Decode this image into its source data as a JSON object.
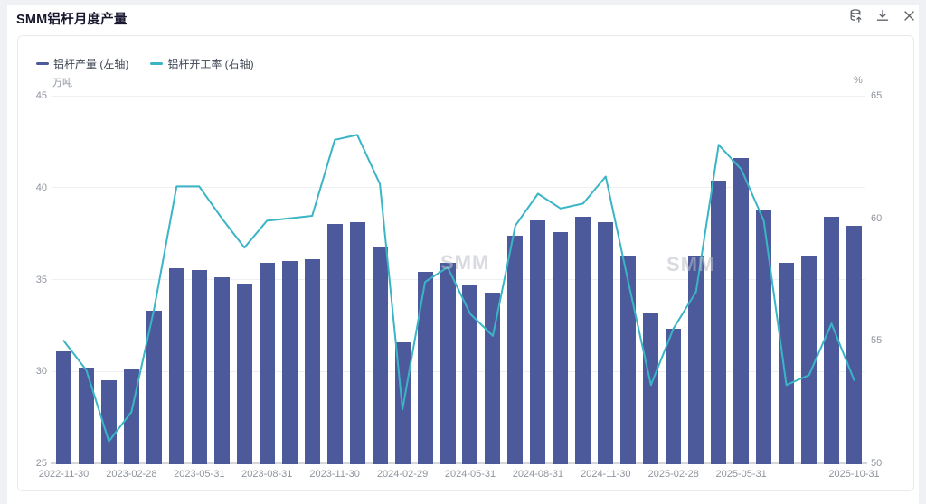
{
  "header": {
    "title": "SMM铝杆月度产量"
  },
  "toolbar": {
    "icons": [
      {
        "name": "data-export-icon"
      },
      {
        "name": "download-icon"
      },
      {
        "name": "close-icon"
      }
    ]
  },
  "legend": {
    "items": [
      {
        "label": "铝杆产量 (左轴)",
        "color": "#4c5a9c"
      },
      {
        "label": "铝杆开工率 (右轴)",
        "color": "#3ab5c6"
      }
    ]
  },
  "watermark": {
    "text": "SMM"
  },
  "colors": {
    "bar": "#4c5a9c",
    "line": "#3ab5c6",
    "grid": "#edeff2",
    "axis_text": "#8f949e",
    "axis_line": "#d3d6db",
    "card_border": "#e8eaee",
    "page_bg": "#eff1f4"
  },
  "chart_data": {
    "type": "bar+line",
    "title": "SMM铝杆月度产量",
    "categories": [
      "2022-11-30",
      "2022-12-31",
      "2023-01-31",
      "2023-02-28",
      "2023-03-31",
      "2023-04-30",
      "2023-05-31",
      "2023-06-30",
      "2023-07-31",
      "2023-08-31",
      "2023-09-30",
      "2023-10-31",
      "2023-11-30",
      "2023-12-31",
      "2024-01-31",
      "2024-02-29",
      "2024-03-31",
      "2024-04-30",
      "2024-05-31",
      "2024-06-30",
      "2024-07-31",
      "2024-08-31",
      "2024-09-30",
      "2024-10-31",
      "2024-11-30",
      "2024-12-31",
      "2025-01-31",
      "2025-02-28",
      "2025-03-31",
      "2025-04-30",
      "2025-05-31",
      "2025-06-30",
      "2025-07-31",
      "2025-08-31",
      "2025-09-30",
      "2025-10-31"
    ],
    "series": [
      {
        "name": "铝杆产量 (左轴)",
        "type": "bar",
        "axis": "left",
        "unit": "万吨",
        "color": "#4c5a9c",
        "values": [
          31.1,
          30.2,
          29.5,
          30.1,
          33.3,
          35.6,
          35.5,
          35.1,
          34.8,
          35.9,
          36.0,
          36.1,
          38.0,
          38.1,
          36.8,
          31.6,
          35.4,
          35.9,
          34.7,
          34.3,
          37.4,
          38.2,
          37.6,
          38.4,
          38.1,
          36.3,
          33.2,
          32.3,
          36.3,
          40.4,
          41.6,
          38.8,
          35.9,
          36.3,
          38.4,
          37.9
        ]
      },
      {
        "name": "铝杆开工率 (右轴)",
        "type": "line",
        "axis": "right",
        "unit": "%",
        "color": "#3ab5c6",
        "values": [
          55.0,
          53.8,
          50.9,
          52.1,
          56.3,
          61.3,
          61.3,
          60.0,
          58.8,
          59.9,
          60.0,
          60.1,
          63.2,
          63.4,
          61.4,
          52.2,
          57.4,
          58.0,
          56.1,
          55.2,
          59.7,
          61.0,
          60.4,
          60.6,
          61.7,
          57.4,
          53.2,
          55.5,
          57.0,
          63.0,
          62.0,
          59.9,
          53.2,
          53.6,
          55.7,
          53.4
        ]
      }
    ],
    "left_axis": {
      "unit": "万吨",
      "min": 25,
      "max": 45,
      "ticks": [
        45,
        40,
        35,
        30,
        25
      ]
    },
    "right_axis": {
      "unit": "%",
      "min": 50,
      "max": 65,
      "ticks": [
        65,
        60,
        55,
        50
      ]
    },
    "x_tick_labels": [
      "2022-11-30",
      "2023-02-28",
      "2023-05-31",
      "2023-08-31",
      "2023-11-30",
      "2024-02-29",
      "2024-05-31",
      "2024-08-31",
      "2024-11-30",
      "2025-02-28",
      "2025-05-31",
      "2025-10-31"
    ],
    "x_tick_indices": [
      0,
      3,
      6,
      9,
      12,
      15,
      18,
      21,
      24,
      27,
      30,
      35
    ],
    "grid": true,
    "legend_position": "top-left"
  }
}
